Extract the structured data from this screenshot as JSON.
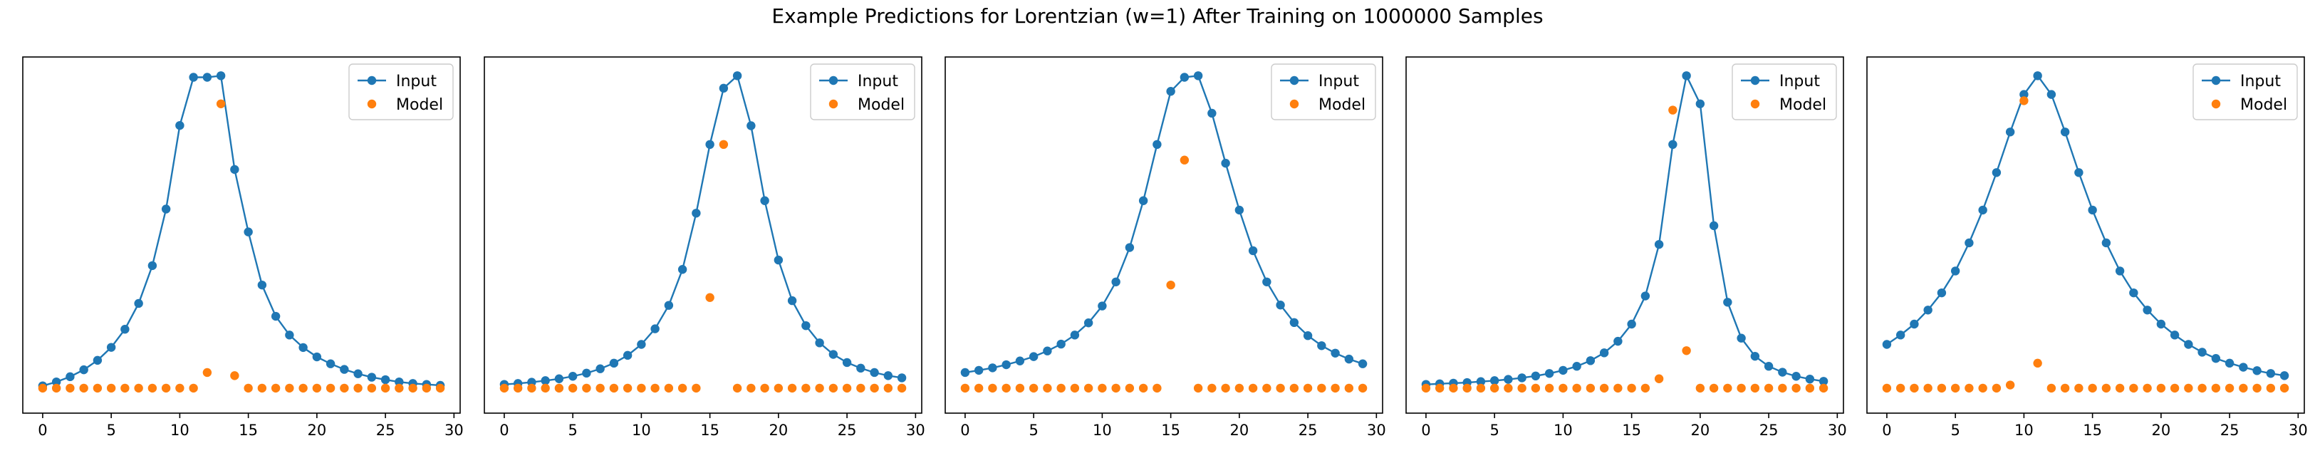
{
  "title": "Example Predictions for Lorentzian (w=1) After Training on 1000000 Samples",
  "colors": {
    "input": "#1f77b4",
    "model": "#ff7f0e",
    "axes": "#000000"
  },
  "legend": {
    "position": "top-right",
    "entries": [
      "Input",
      "Model"
    ]
  },
  "chart_data": [
    {
      "type": "line",
      "xlim": [
        -1.45,
        30.45
      ],
      "ylim": [
        -0.08,
        1.06
      ],
      "xticks": [
        0,
        5,
        10,
        15,
        20,
        25,
        30
      ],
      "series": [
        {
          "name": "Input",
          "marker": "circle-line",
          "x": [
            0,
            1,
            2,
            3,
            4,
            5,
            6,
            7,
            8,
            9,
            10,
            11,
            12,
            13,
            14,
            15,
            16,
            17,
            18,
            19,
            20,
            21,
            22,
            23,
            24,
            25,
            26,
            27,
            28,
            29
          ],
          "y": [
            0.0074,
            0.02,
            0.0366,
            0.0588,
            0.089,
            0.1305,
            0.1885,
            0.2712,
            0.3922,
            0.5732,
            0.8408,
            0.995,
            0.995,
            1.0,
            0.7,
            0.5,
            0.33,
            0.23,
            0.17,
            0.13,
            0.1,
            0.078,
            0.06,
            0.046,
            0.035,
            0.027,
            0.02,
            0.015,
            0.012,
            0.009
          ]
        },
        {
          "name": "Model",
          "marker": "circle",
          "x": [
            0,
            1,
            2,
            3,
            4,
            5,
            6,
            7,
            8,
            9,
            10,
            11,
            12,
            13,
            14,
            15,
            16,
            17,
            18,
            19,
            20,
            21,
            22,
            23,
            24,
            25,
            26,
            27,
            28,
            29
          ],
          "y": [
            0,
            0,
            0,
            0,
            0,
            0,
            0,
            0,
            0,
            0,
            0,
            0,
            0.05,
            0.91,
            0.04,
            0,
            0,
            0,
            0,
            0,
            0,
            0,
            0,
            0,
            0,
            0,
            0,
            0,
            0,
            0
          ]
        }
      ]
    },
    {
      "type": "line",
      "xlim": [
        -1.45,
        30.45
      ],
      "ylim": [
        -0.08,
        1.06
      ],
      "xticks": [
        0,
        5,
        10,
        15,
        20,
        25,
        30
      ],
      "series": [
        {
          "name": "Input",
          "marker": "circle-line",
          "x": [
            0,
            1,
            2,
            3,
            4,
            5,
            6,
            7,
            8,
            9,
            10,
            11,
            12,
            13,
            14,
            15,
            16,
            17,
            18,
            19,
            20,
            21,
            22,
            23,
            24,
            25,
            26,
            27,
            28,
            29
          ],
          "y": [
            0.012,
            0.015,
            0.019,
            0.024,
            0.03,
            0.038,
            0.048,
            0.062,
            0.08,
            0.105,
            0.14,
            0.19,
            0.265,
            0.38,
            0.56,
            0.78,
            0.96,
            1.0,
            0.84,
            0.6,
            0.41,
            0.28,
            0.2,
            0.145,
            0.108,
            0.082,
            0.064,
            0.05,
            0.04,
            0.033
          ]
        },
        {
          "name": "Model",
          "marker": "circle",
          "x": [
            0,
            1,
            2,
            3,
            4,
            5,
            6,
            7,
            8,
            9,
            10,
            11,
            12,
            13,
            14,
            15,
            16,
            17,
            18,
            19,
            20,
            21,
            22,
            23,
            24,
            25,
            26,
            27,
            28,
            29
          ],
          "y": [
            0,
            0,
            0,
            0,
            0,
            0,
            0,
            0,
            0,
            0,
            0,
            0,
            0,
            0,
            0,
            0.29,
            0.78,
            0,
            0,
            0,
            0,
            0,
            0,
            0,
            0,
            0,
            0,
            0,
            0,
            0
          ]
        }
      ]
    },
    {
      "type": "line",
      "xlim": [
        -1.45,
        30.45
      ],
      "ylim": [
        -0.08,
        1.06
      ],
      "xticks": [
        0,
        5,
        10,
        15,
        20,
        25,
        30
      ],
      "series": [
        {
          "name": "Input",
          "marker": "circle-line",
          "x": [
            0,
            1,
            2,
            3,
            4,
            5,
            6,
            7,
            8,
            9,
            10,
            11,
            12,
            13,
            14,
            15,
            16,
            17,
            18,
            19,
            20,
            21,
            22,
            23,
            24,
            25,
            26,
            27,
            28,
            29
          ],
          "y": [
            0.05,
            0.057,
            0.065,
            0.075,
            0.087,
            0.101,
            0.119,
            0.141,
            0.17,
            0.209,
            0.263,
            0.34,
            0.45,
            0.6,
            0.78,
            0.95,
            0.995,
            1.0,
            0.88,
            0.72,
            0.57,
            0.44,
            0.34,
            0.266,
            0.21,
            0.168,
            0.136,
            0.112,
            0.093,
            0.078
          ]
        },
        {
          "name": "Model",
          "marker": "circle",
          "x": [
            0,
            1,
            2,
            3,
            4,
            5,
            6,
            7,
            8,
            9,
            10,
            11,
            12,
            13,
            14,
            15,
            16,
            17,
            18,
            19,
            20,
            21,
            22,
            23,
            24,
            25,
            26,
            27,
            28,
            29
          ],
          "y": [
            0,
            0,
            0,
            0,
            0,
            0,
            0,
            0,
            0,
            0,
            0,
            0,
            0,
            0,
            0,
            0.33,
            0.73,
            0,
            0,
            0,
            0,
            0,
            0,
            0,
            0,
            0,
            0,
            0,
            0,
            0
          ]
        }
      ]
    },
    {
      "type": "line",
      "xlim": [
        -1.45,
        30.45
      ],
      "ylim": [
        -0.08,
        1.06
      ],
      "xticks": [
        0,
        5,
        10,
        15,
        20,
        25,
        30
      ],
      "series": [
        {
          "name": "Input",
          "marker": "circle-line",
          "x": [
            0,
            1,
            2,
            3,
            4,
            5,
            6,
            7,
            8,
            9,
            10,
            11,
            12,
            13,
            14,
            15,
            16,
            17,
            18,
            19,
            20,
            21,
            22,
            23,
            24,
            25,
            26,
            27,
            28,
            29
          ],
          "y": [
            0.012,
            0.014,
            0.016,
            0.018,
            0.021,
            0.024,
            0.028,
            0.033,
            0.039,
            0.047,
            0.057,
            0.07,
            0.088,
            0.113,
            0.15,
            0.205,
            0.295,
            0.46,
            0.78,
            1.0,
            0.91,
            0.52,
            0.275,
            0.16,
            0.102,
            0.07,
            0.051,
            0.038,
            0.029,
            0.022
          ]
        },
        {
          "name": "Model",
          "marker": "circle",
          "x": [
            0,
            1,
            2,
            3,
            4,
            5,
            6,
            7,
            8,
            9,
            10,
            11,
            12,
            13,
            14,
            15,
            16,
            17,
            18,
            19,
            20,
            21,
            22,
            23,
            24,
            25,
            26,
            27,
            28,
            29
          ],
          "y": [
            0,
            0,
            0,
            0,
            0,
            0,
            0,
            0,
            0,
            0,
            0,
            0,
            0,
            0,
            0,
            0,
            0,
            0.03,
            0.89,
            0.12,
            0,
            0,
            0,
            0,
            0,
            0,
            0,
            0,
            0,
            0
          ]
        }
      ]
    },
    {
      "type": "line",
      "xlim": [
        -1.45,
        30.45
      ],
      "ylim": [
        -0.08,
        1.06
      ],
      "xticks": [
        0,
        5,
        10,
        15,
        20,
        25,
        30
      ],
      "series": [
        {
          "name": "Input",
          "marker": "circle-line",
          "x": [
            0,
            1,
            2,
            3,
            4,
            5,
            6,
            7,
            8,
            9,
            10,
            11,
            12,
            13,
            14,
            15,
            16,
            17,
            18,
            19,
            20,
            21,
            22,
            23,
            24,
            25,
            26,
            27,
            28,
            29
          ],
          "y": [
            0.14,
            0.17,
            0.205,
            0.25,
            0.305,
            0.375,
            0.465,
            0.57,
            0.69,
            0.82,
            0.94,
            1.0,
            0.94,
            0.82,
            0.69,
            0.57,
            0.465,
            0.375,
            0.305,
            0.25,
            0.205,
            0.17,
            0.14,
            0.115,
            0.095,
            0.08,
            0.067,
            0.056,
            0.047,
            0.04
          ]
        },
        {
          "name": "Model",
          "marker": "circle",
          "x": [
            0,
            1,
            2,
            3,
            4,
            5,
            6,
            7,
            8,
            9,
            10,
            11,
            12,
            13,
            14,
            15,
            16,
            17,
            18,
            19,
            20,
            21,
            22,
            23,
            24,
            25,
            26,
            27,
            28,
            29
          ],
          "y": [
            0,
            0,
            0,
            0,
            0,
            0,
            0,
            0,
            0,
            0.01,
            0.92,
            0.08,
            0,
            0,
            0,
            0,
            0,
            0,
            0,
            0,
            0,
            0,
            0,
            0,
            0,
            0,
            0,
            0,
            0,
            0
          ]
        }
      ]
    }
  ]
}
